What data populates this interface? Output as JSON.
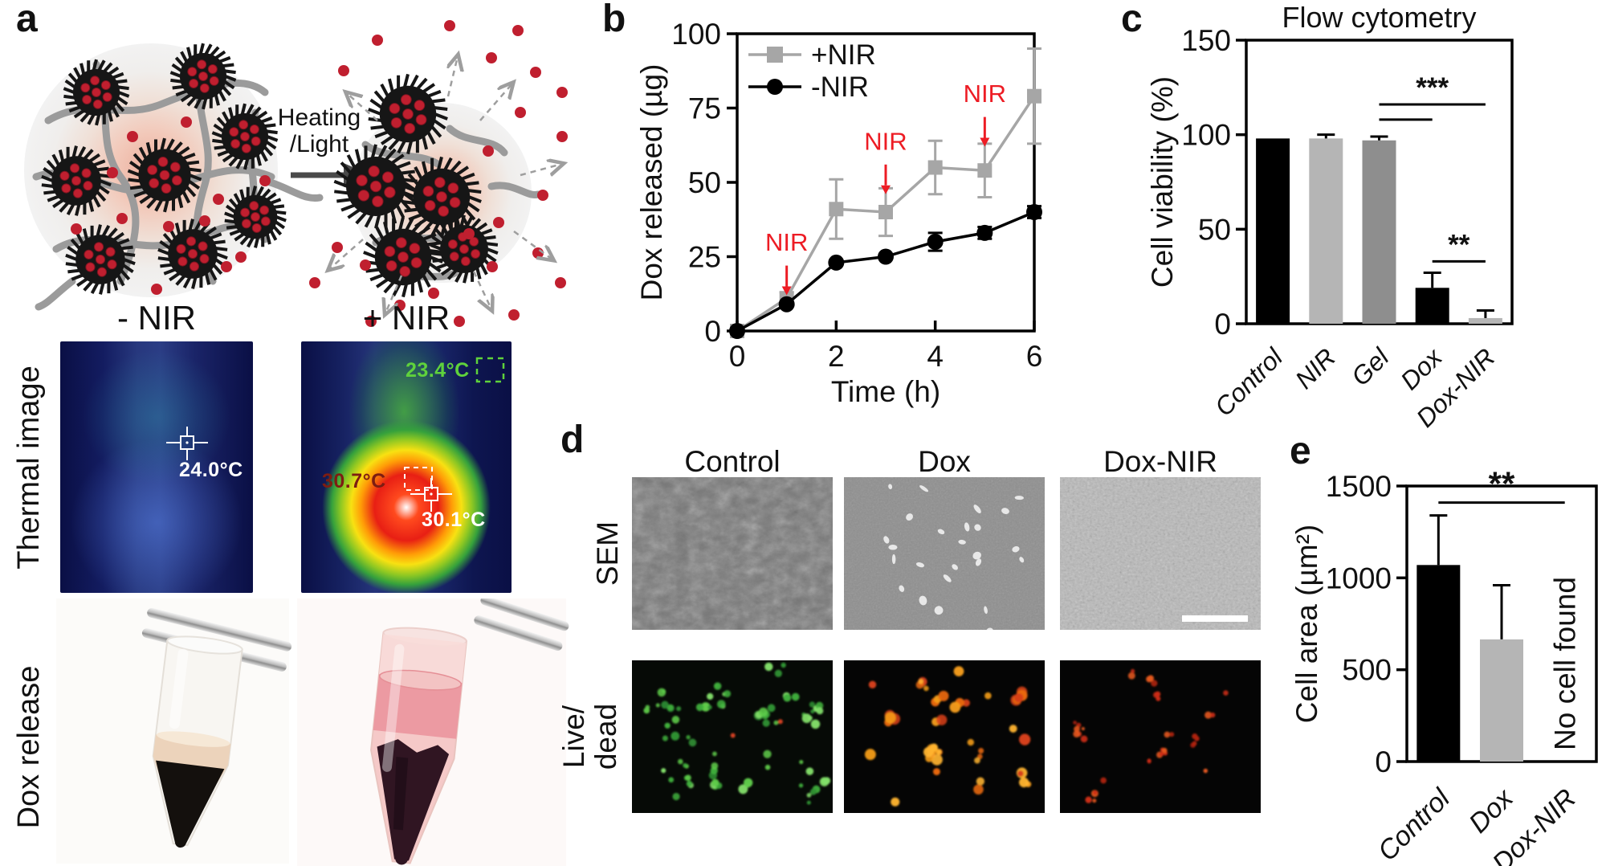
{
  "panels": {
    "a": {
      "label": "a",
      "transition_label_lines": [
        "Heating",
        "/Light"
      ],
      "left_state_label": "- NIR",
      "right_state_label": "+ NIR",
      "row_labels": {
        "thermal": "Thermal image",
        "dox": "Dox release"
      },
      "thermal_minus": {
        "spot_temp": "24.0°C",
        "spot_color": "#ffffff"
      },
      "thermal_plus": {
        "top_temp": "23.4°C",
        "top_color": "#5fd23c",
        "hot_temp": "30.7°C",
        "hot_color": "#7d1d12",
        "spot_temp": "30.1°C",
        "spot_color": "#ffffff"
      },
      "dot_color": "#c01f2f"
    },
    "b": {
      "label": "b"
    },
    "c": {
      "label": "c"
    },
    "d": {
      "label": "d",
      "columns": [
        "Control",
        "Dox",
        "Dox-NIR"
      ],
      "row_sem": "SEM",
      "row_livedead_lines": [
        "Live/",
        "dead"
      ]
    },
    "e": {
      "label": "e"
    }
  },
  "chart_data": [
    {
      "id": "b",
      "type": "line",
      "xlabel": "Time (h)",
      "ylabel": "Dox released (µg)",
      "xlim": [
        0,
        6
      ],
      "ylim": [
        0,
        100
      ],
      "xticks": [
        0,
        2,
        4,
        6
      ],
      "yticks": [
        0,
        25,
        50,
        75,
        100
      ],
      "grid": false,
      "legend_position": "top-left",
      "series": [
        {
          "name": "+NIR",
          "marker": "square",
          "color": "#a6a6a6",
          "x": [
            0,
            1,
            2,
            3,
            4,
            5,
            6
          ],
          "y": [
            0,
            11,
            41,
            40,
            55,
            54,
            79
          ],
          "yerr": [
            0,
            2,
            10,
            8,
            9,
            9,
            16
          ]
        },
        {
          "name": "-NIR",
          "marker": "circle",
          "color": "#000000",
          "x": [
            0,
            1,
            2,
            3,
            4,
            5,
            6
          ],
          "y": [
            0,
            9,
            23,
            25,
            30,
            33,
            40
          ],
          "yerr": [
            0,
            0,
            0,
            0,
            3,
            2,
            2
          ]
        }
      ],
      "annotations": [
        {
          "text": "NIR",
          "color": "#ed1c24",
          "x": 1,
          "text_value": 27,
          "arrow_from": 22,
          "arrow_to": 15
        },
        {
          "text": "NIR",
          "color": "#ed1c24",
          "x": 3,
          "text_value": 61,
          "arrow_from": 56,
          "arrow_to": 49
        },
        {
          "text": "NIR",
          "color": "#ed1c24",
          "x": 5,
          "text_value": 77,
          "arrow_from": 72,
          "arrow_to": 65
        }
      ]
    },
    {
      "id": "c",
      "type": "bar",
      "title": "Flow cytometry",
      "ylabel": "Cell viability (%)",
      "ylim": [
        0,
        150
      ],
      "yticks": [
        0,
        50,
        100,
        150
      ],
      "categories": [
        "Control",
        "NIR",
        "Gel",
        "Dox",
        "Dox-NIR"
      ],
      "values": [
        98,
        98,
        97,
        19,
        3
      ],
      "errors": [
        0,
        2,
        2,
        8,
        4
      ],
      "bar_colors": [
        "#000000",
        "#b5b5b5",
        "#8e8e8e",
        "#000000",
        "#b5b5b5"
      ],
      "significance": [
        {
          "label": "***",
          "from": 2,
          "to": 4,
          "value": 116
        },
        {
          "label": "",
          "from": 2,
          "to": 3,
          "value": 108
        },
        {
          "label": "**",
          "from": 3,
          "to": 4,
          "value": 33
        }
      ]
    },
    {
      "id": "e",
      "type": "bar",
      "title": "",
      "ylabel": "Cell area (µm²)",
      "ylim": [
        0,
        1500
      ],
      "yticks": [
        0,
        500,
        1000,
        1500
      ],
      "categories": [
        "Control",
        "Dox",
        "Dox-NIR"
      ],
      "values": [
        1070,
        665,
        null
      ],
      "errors": [
        270,
        295,
        null
      ],
      "bar_colors": [
        "#000000",
        "#b5b5b5",
        null
      ],
      "note": {
        "text": "No cell found",
        "category": 2
      },
      "significance": [
        {
          "label": "**",
          "from": 0,
          "to": 2,
          "value": 1410
        }
      ]
    }
  ]
}
